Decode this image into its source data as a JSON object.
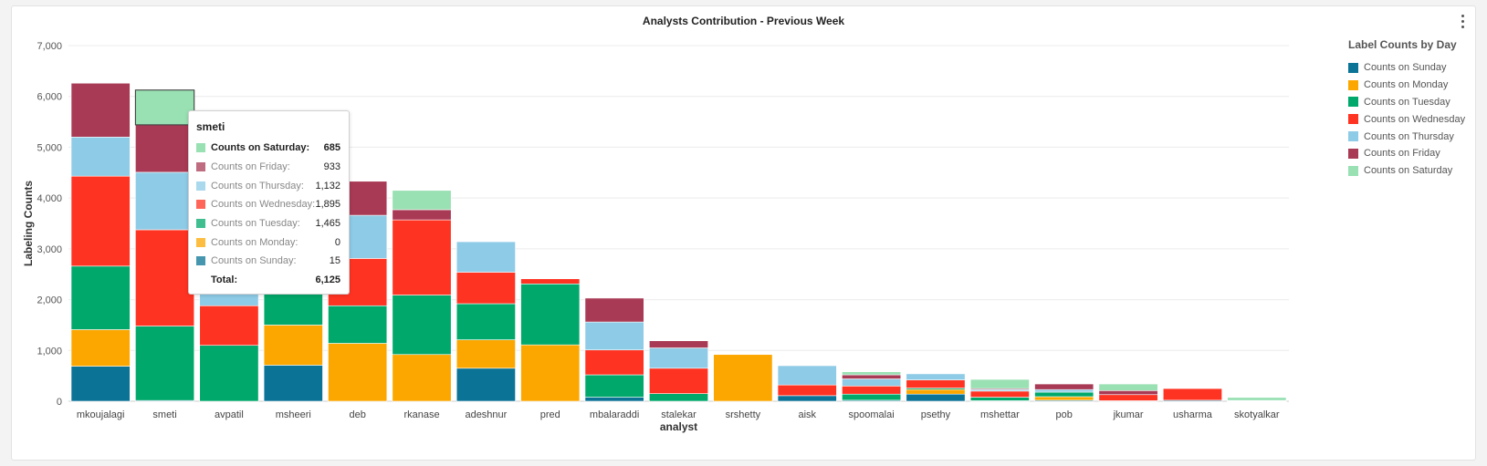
{
  "chart_data": {
    "type": "bar",
    "stacked": true,
    "title": "Analysts Contribution - Previous Week",
    "xlabel": "analyst",
    "ylabel": "Labeling Counts",
    "ylim": [
      0,
      7000
    ],
    "yticks": [
      "0",
      "1,000",
      "2,000",
      "3,000",
      "4,000",
      "5,000",
      "6,000",
      "7,000"
    ],
    "grid": true,
    "legend_title": "Label Counts by Day",
    "legend_position": "right",
    "categories": [
      "mkoujalagi",
      "smeti",
      "avpatil",
      "msheeri",
      "deb",
      "rkanase",
      "adeshnur",
      "pred",
      "mbalaraddi",
      "stalekar",
      "srshetty",
      "aisk",
      "spoomalai",
      "psethy",
      "mshettar",
      "pob",
      "jkumar",
      "usharma",
      "skotyalkar"
    ],
    "series": [
      {
        "name": "Counts on Sunday",
        "color": "#0a7396",
        "values": [
          690,
          15,
          0,
          710,
          0,
          0,
          650,
          0,
          80,
          0,
          0,
          110,
          20,
          140,
          10,
          20,
          10,
          20,
          5
        ]
      },
      {
        "name": "Counts on Monday",
        "color": "#fca700",
        "values": [
          720,
          0,
          0,
          790,
          1140,
          920,
          560,
          1110,
          0,
          0,
          920,
          0,
          0,
          90,
          0,
          70,
          0,
          0,
          0
        ]
      },
      {
        "name": "Counts on Tuesday",
        "color": "#00a86b",
        "values": [
          1250,
          1465,
          1100,
          1100,
          740,
          1170,
          710,
          1200,
          440,
          150,
          0,
          0,
          120,
          30,
          70,
          90,
          0,
          0,
          10
        ]
      },
      {
        "name": "Counts on Wednesday",
        "color": "#ff3322",
        "values": [
          1770,
          1895,
          780,
          0,
          930,
          1480,
          620,
          100,
          490,
          500,
          0,
          210,
          160,
          160,
          120,
          0,
          120,
          230,
          0
        ]
      },
      {
        "name": "Counts on Thursday",
        "color": "#8ecbe7",
        "values": [
          770,
          1132,
          1100,
          0,
          850,
          0,
          600,
          0,
          550,
          400,
          0,
          380,
          140,
          120,
          30,
          50,
          0,
          0,
          0
        ]
      },
      {
        "name": "Counts on Friday",
        "color": "#a93a55",
        "values": [
          1060,
          933,
          0,
          0,
          670,
          200,
          0,
          0,
          470,
          140,
          0,
          0,
          80,
          0,
          20,
          110,
          80,
          0,
          0
        ]
      },
      {
        "name": "Counts on Saturday",
        "color": "#99e0b3",
        "values": [
          0,
          685,
          0,
          0,
          0,
          380,
          0,
          0,
          0,
          0,
          0,
          0,
          60,
          0,
          180,
          0,
          130,
          0,
          60
        ]
      }
    ]
  },
  "tooltip": {
    "title": "smeti",
    "rows": [
      {
        "label": "Counts on Saturday:",
        "value": "685",
        "color": "#99e0b3",
        "active": true
      },
      {
        "label": "Counts on Friday:",
        "value": "933",
        "color": "#a93a55"
      },
      {
        "label": "Counts on Thursday:",
        "value": "1,132",
        "color": "#8ecbe7"
      },
      {
        "label": "Counts on Wednesday:",
        "value": "1,895",
        "color": "#ff3322"
      },
      {
        "label": "Counts on Tuesday:",
        "value": "1,465",
        "color": "#00a86b"
      },
      {
        "label": "Counts on Monday:",
        "value": "0",
        "color": "#fca700"
      },
      {
        "label": "Counts on Sunday:",
        "value": "15",
        "color": "#0a7396"
      }
    ],
    "total_label": "Total:",
    "total_value": "6,125"
  }
}
